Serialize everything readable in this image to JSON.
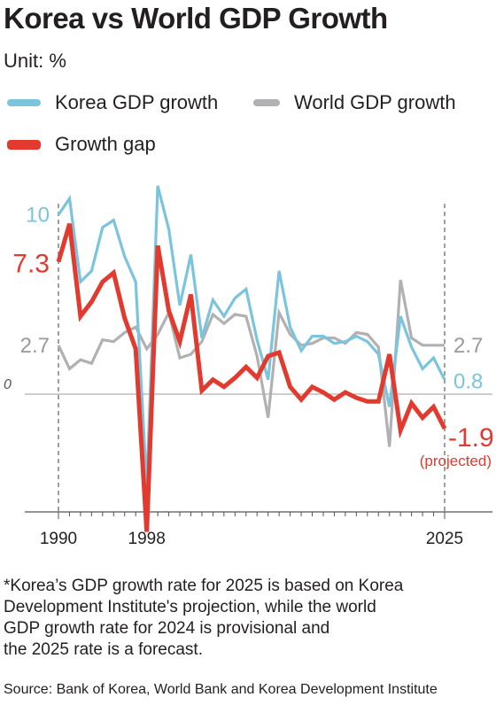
{
  "title": "Korea vs World GDP Growth",
  "unit": "Unit: %",
  "footnote_lines": [
    "*Korea’s GDP growth rate for 2025 is based on Korea",
    "Development Institute's projection, while the world",
    "GDP growth rate for 2024 is provisional and",
    "the 2025 rate is a forecast."
  ],
  "source": "Source: Bank of Korea, World Bank and Korea Development Institute",
  "chart_data": {
    "type": "line",
    "x": [
      1990,
      1991,
      1992,
      1993,
      1994,
      1995,
      1996,
      1997,
      1998,
      1999,
      2000,
      2001,
      2002,
      2003,
      2004,
      2005,
      2006,
      2007,
      2008,
      2009,
      2010,
      2011,
      2012,
      2013,
      2014,
      2015,
      2016,
      2017,
      2018,
      2019,
      2020,
      2021,
      2022,
      2023,
      2024,
      2025
    ],
    "xlim": [
      1990,
      2025
    ],
    "ylim": [
      -6.5,
      11
    ],
    "zero_label": "0",
    "x_tick_labels": [
      {
        "year": 1990,
        "label": "1990"
      },
      {
        "year": 1998,
        "label": "1998"
      },
      {
        "year": 2025,
        "label": "2025"
      }
    ],
    "series": [
      {
        "name": "Korea GDP growth",
        "color": "#7ac5dd",
        "values": [
          9.9,
          10.8,
          6.2,
          6.8,
          9.2,
          9.6,
          7.6,
          6.2,
          -5.1,
          11.5,
          9.1,
          4.9,
          7.7,
          3.1,
          5.2,
          4.3,
          5.3,
          5.8,
          3.0,
          0.8,
          6.8,
          3.7,
          2.4,
          3.2,
          3.2,
          2.8,
          2.9,
          3.2,
          2.9,
          2.2,
          -0.7,
          4.3,
          2.6,
          1.4,
          2.0,
          0.8
        ],
        "end_label": "0.8",
        "start_label": "10"
      },
      {
        "name": "World GDP growth",
        "color": "#b1b1b3",
        "values": [
          2.7,
          1.4,
          1.9,
          1.7,
          3.0,
          2.9,
          3.4,
          3.7,
          2.5,
          3.3,
          4.5,
          2.0,
          2.2,
          2.9,
          4.4,
          3.9,
          4.4,
          4.3,
          2.1,
          -1.3,
          4.5,
          3.3,
          2.7,
          2.8,
          3.1,
          3.1,
          2.8,
          3.4,
          3.3,
          2.6,
          -2.9,
          6.3,
          3.1,
          2.7,
          2.7,
          2.7
        ],
        "end_label": "2.7",
        "start_label": "2.7"
      },
      {
        "name": "Growth gap",
        "color": "#e23a2e",
        "values": [
          7.3,
          9.4,
          4.3,
          5.1,
          6.2,
          6.7,
          4.2,
          2.5,
          -7.6,
          8.2,
          4.6,
          2.9,
          5.5,
          0.2,
          0.8,
          0.4,
          0.9,
          1.5,
          0.9,
          2.1,
          2.3,
          0.4,
          -0.3,
          0.4,
          0.1,
          -0.3,
          0.1,
          -0.2,
          -0.4,
          -0.4,
          2.2,
          -2.0,
          -0.5,
          -1.3,
          -0.7,
          -1.9
        ],
        "end_label": "-1.9",
        "end_sublabel": "(projected)",
        "start_label": "7.3"
      }
    ]
  }
}
